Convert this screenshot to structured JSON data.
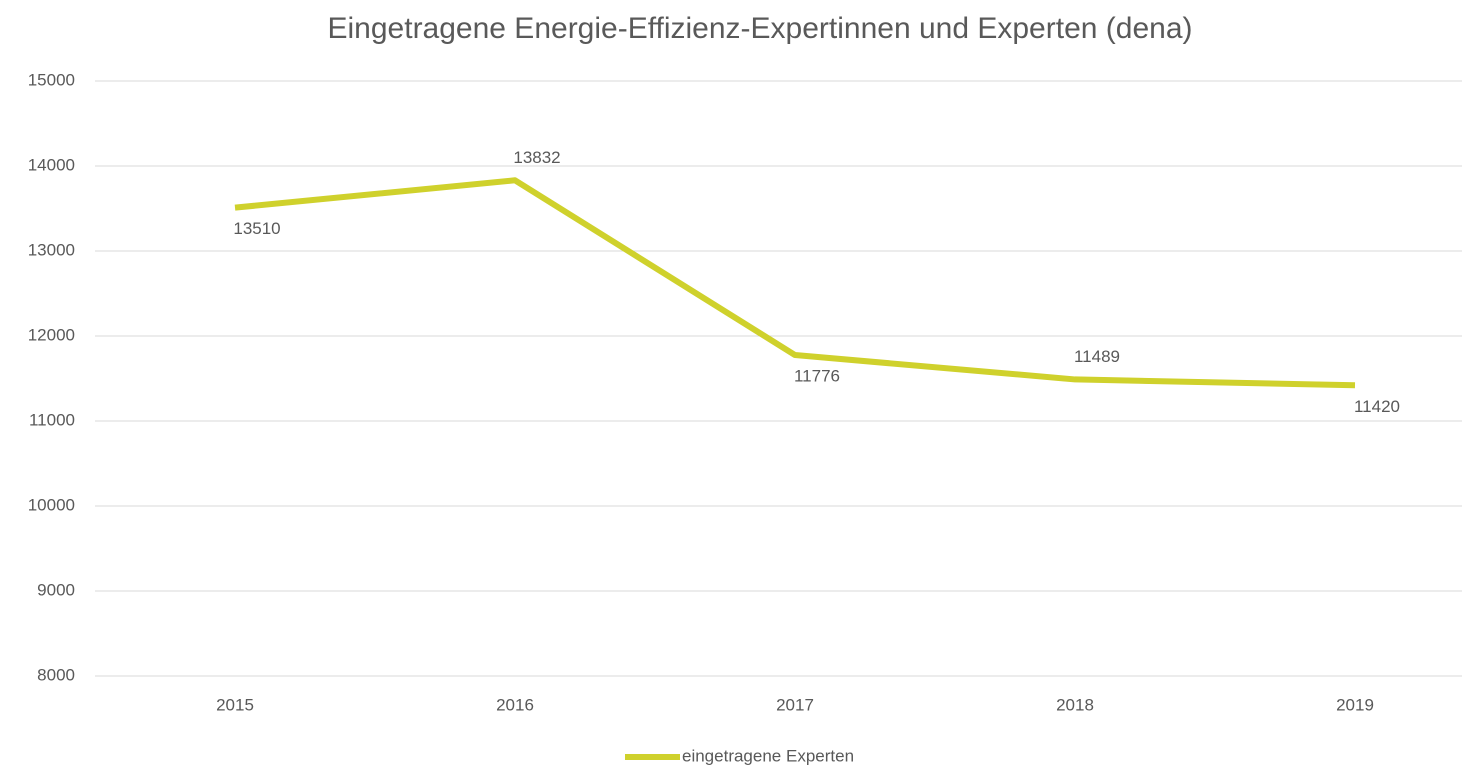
{
  "chart_data": {
    "type": "line",
    "title": "Eingetragene Energie-Effizienz-Expertinnen und Experten (dena)",
    "categories": [
      "2015",
      "2016",
      "2017",
      "2018",
      "2019"
    ],
    "series": [
      {
        "name": "eingetragene Experten",
        "color": "#cfd12c",
        "values": [
          13510,
          13832,
          11776,
          11489,
          11420
        ]
      }
    ],
    "ylim": [
      8000,
      15000
    ],
    "yticks": [
      8000,
      9000,
      10000,
      11000,
      12000,
      13000,
      14000,
      15000
    ],
    "grid": true,
    "legend": "bottom"
  }
}
